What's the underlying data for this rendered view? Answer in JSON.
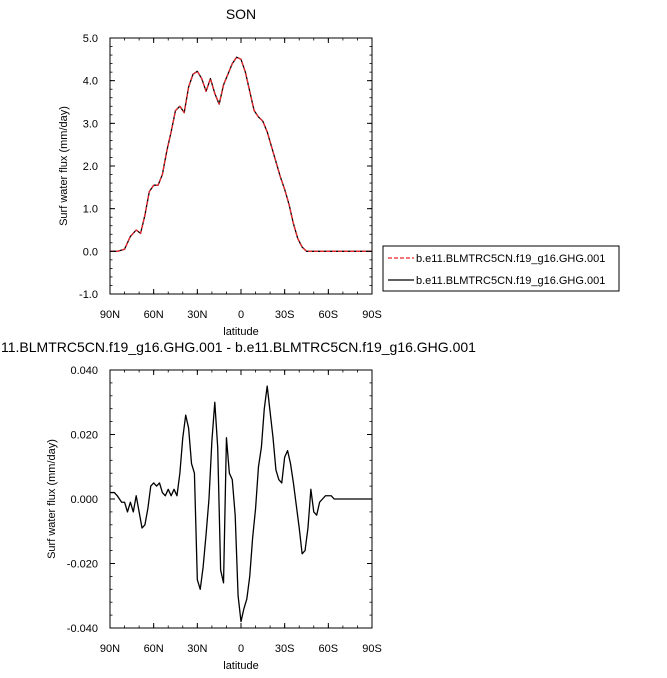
{
  "chart_data": [
    {
      "type": "line",
      "title": "SON",
      "xlabel": "latitude",
      "ylabel": "Surf water flux (mm/day)",
      "x_ticks": [
        "90N",
        "60N",
        "30N",
        "0",
        "30S",
        "60S",
        "90S"
      ],
      "x_tick_values": [
        90,
        60,
        30,
        0,
        -30,
        -60,
        -90
      ],
      "xlim": [
        90,
        -90
      ],
      "ylim": [
        -1.0,
        5.0
      ],
      "y_ticks": [
        "-1.0",
        "0.0",
        "1.0",
        "2.0",
        "3.0",
        "4.0",
        "5.0"
      ],
      "y_tick_values": [
        -1,
        0,
        1,
        2,
        3,
        4,
        5
      ],
      "x": [
        90,
        85,
        80,
        76,
        72,
        69,
        66,
        63,
        60,
        57,
        54,
        51,
        48,
        45,
        42,
        39,
        36,
        33,
        30,
        27,
        24,
        21,
        18,
        15,
        12,
        9,
        6,
        3,
        0,
        -3,
        -6,
        -9,
        -12,
        -15,
        -18,
        -21,
        -24,
        -27,
        -30,
        -33,
        -36,
        -39,
        -42,
        -45,
        -48,
        -51,
        -54,
        -57,
        -60,
        -63,
        -66,
        -69,
        -72,
        -75,
        -78,
        -81,
        -84,
        -87,
        -90
      ],
      "legend_position": "right",
      "series": [
        {
          "name": "b.e11.BLMTRC5CN.f19_g16.GHG.001",
          "color": "#e8262b",
          "dash": "dashed",
          "values": [
            0.0,
            0.0,
            0.05,
            0.35,
            0.5,
            0.42,
            0.85,
            1.4,
            1.55,
            1.55,
            1.8,
            2.35,
            2.8,
            3.3,
            3.4,
            3.25,
            3.85,
            4.15,
            4.22,
            4.05,
            3.75,
            4.05,
            3.7,
            3.45,
            3.9,
            4.15,
            4.4,
            4.55,
            4.5,
            4.2,
            3.75,
            3.3,
            3.15,
            3.05,
            2.8,
            2.45,
            2.1,
            1.75,
            1.45,
            1.1,
            0.65,
            0.3,
            0.1,
            0.0,
            0.0,
            0.0,
            0.0,
            0.0,
            0.0,
            0.0,
            0.0,
            0.0,
            0.0,
            0.0,
            0.0,
            0.0,
            0.0,
            0.0,
            0.0
          ]
        },
        {
          "name": "b.e11.BLMTRC5CN.f19_g16.GHG.001",
          "color": "#000000",
          "dash": "solid",
          "values": [
            0.0,
            0.0,
            0.05,
            0.35,
            0.5,
            0.42,
            0.85,
            1.4,
            1.55,
            1.55,
            1.8,
            2.35,
            2.8,
            3.3,
            3.4,
            3.25,
            3.85,
            4.15,
            4.22,
            4.05,
            3.75,
            4.05,
            3.7,
            3.45,
            3.9,
            4.15,
            4.4,
            4.55,
            4.5,
            4.2,
            3.75,
            3.3,
            3.15,
            3.05,
            2.8,
            2.45,
            2.1,
            1.75,
            1.45,
            1.1,
            0.65,
            0.3,
            0.1,
            0.0,
            0.0,
            0.0,
            0.0,
            0.0,
            0.0,
            0.0,
            0.0,
            0.0,
            0.0,
            0.0,
            0.0,
            0.0,
            0.0,
            0.0,
            0.0
          ]
        }
      ]
    },
    {
      "type": "line",
      "title": "11.BLMTRC5CN.f19_g16.GHG.001 - b.e11.BLMTRC5CN.f19_g16.GHG.001",
      "xlabel": "latitude",
      "ylabel": "Surf water flux (mm/day)",
      "x_ticks": [
        "90N",
        "60N",
        "30N",
        "0",
        "30S",
        "60S",
        "90S"
      ],
      "x_tick_values": [
        90,
        60,
        30,
        0,
        -30,
        -60,
        -90
      ],
      "xlim": [
        90,
        -90
      ],
      "ylim": [
        -0.04,
        0.04
      ],
      "y_ticks": [
        "-0.040",
        "-0.020",
        "0.000",
        "0.020",
        "0.040"
      ],
      "y_tick_values": [
        -0.04,
        -0.02,
        0.0,
        0.02,
        0.04
      ],
      "series": [
        {
          "color": "#000000",
          "x": [
            90,
            87,
            85,
            82,
            80,
            78,
            76,
            74,
            72,
            70,
            68,
            66,
            64,
            62,
            60,
            58,
            56,
            54,
            52,
            50,
            48,
            46,
            44,
            42,
            40,
            38,
            36,
            34,
            32,
            30,
            28,
            26,
            24,
            22,
            20,
            18,
            16,
            14,
            12,
            10,
            8,
            6,
            4,
            2,
            0,
            -2,
            -4,
            -6,
            -8,
            -10,
            -12,
            -14,
            -16,
            -18,
            -20,
            -22,
            -24,
            -26,
            -28,
            -30,
            -32,
            -34,
            -36,
            -38,
            -40,
            -42,
            -44,
            -46,
            -48,
            -50,
            -52,
            -54,
            -56,
            -58,
            -60,
            -62,
            -64,
            -66,
            -68,
            -70,
            -72,
            -74,
            -76,
            -78,
            -80,
            -83,
            -86,
            -88,
            -90
          ],
          "values": [
            0.002,
            0.002,
            0.001,
            -0.001,
            -0.001,
            -0.004,
            -0.001,
            -0.004,
            0.001,
            -0.004,
            -0.009,
            -0.008,
            -0.003,
            0.004,
            0.005,
            0.004,
            0.005,
            0.002,
            0.001,
            0.003,
            0.001,
            0.003,
            0.001,
            0.008,
            0.019,
            0.026,
            0.022,
            0.011,
            0.008,
            -0.025,
            -0.028,
            -0.021,
            -0.011,
            0.0,
            0.018,
            0.03,
            0.016,
            -0.022,
            -0.026,
            0.019,
            0.008,
            0.006,
            -0.005,
            -0.03,
            -0.038,
            -0.034,
            -0.031,
            -0.024,
            -0.012,
            -0.003,
            0.01,
            0.016,
            0.028,
            0.035,
            0.027,
            0.019,
            0.009,
            0.006,
            0.005,
            0.013,
            0.015,
            0.011,
            0.005,
            -0.002,
            -0.009,
            -0.017,
            -0.016,
            -0.009,
            0.003,
            -0.004,
            -0.005,
            -0.001,
            0.0,
            0.001,
            0.001,
            0.001,
            0.0,
            0.0,
            0.0,
            0.0,
            0.0,
            0.0,
            0.0,
            0.0,
            0.0,
            0.0,
            0.0,
            0.0,
            0.0
          ]
        }
      ]
    }
  ]
}
